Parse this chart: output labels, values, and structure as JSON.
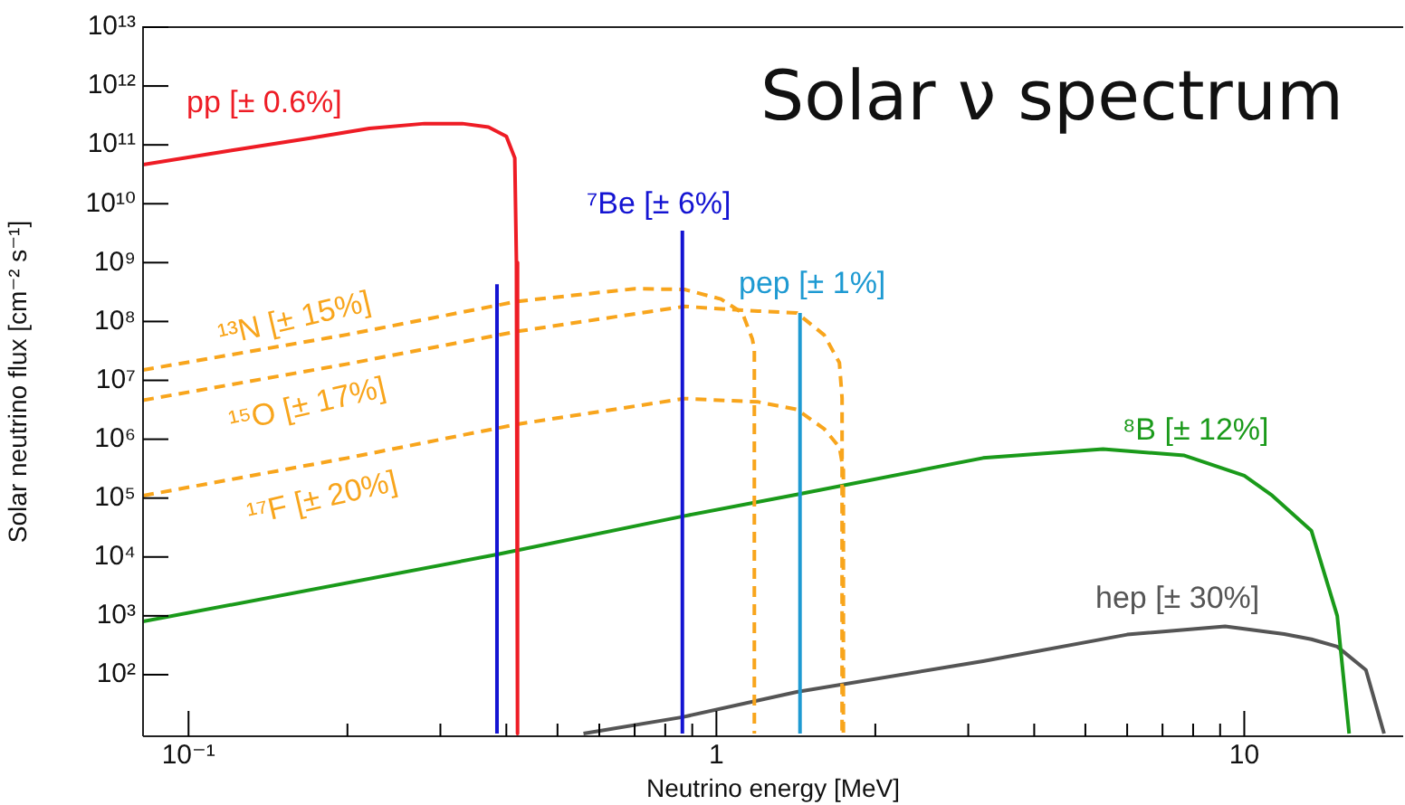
{
  "chart_data": {
    "type": "line",
    "title": "Solar ν spectrum",
    "xlabel": "Neutrino energy [MeV]",
    "ylabel": "Solar neutrino flux [cm⁻² s⁻¹]",
    "log": "xy",
    "grid": false,
    "legend": false,
    "marker": "none",
    "xlim": [
      0.082,
      20
    ],
    "ylim": [
      9,
      10000000000000.0
    ],
    "xticks": [
      {
        "value": 0.1,
        "label": "10⁻¹"
      },
      {
        "value": 0.2,
        "label": null
      },
      {
        "value": 0.3,
        "label": null
      },
      {
        "value": 0.4,
        "label": null
      },
      {
        "value": 0.5,
        "label": null
      },
      {
        "value": 0.6,
        "label": null
      },
      {
        "value": 0.7,
        "label": null
      },
      {
        "value": 0.8,
        "label": null
      },
      {
        "value": 0.9,
        "label": null
      },
      1,
      {
        "value": 2,
        "label": null
      },
      {
        "value": 3,
        "label": null
      },
      {
        "value": 4,
        "label": null
      },
      {
        "value": 5,
        "label": null
      },
      {
        "value": 6,
        "label": null
      },
      {
        "value": 7,
        "label": null
      },
      {
        "value": 8,
        "label": null
      },
      {
        "value": 9,
        "label": null
      },
      10
    ],
    "yticks": [
      {
        "value": 100,
        "label": "10²"
      },
      {
        "value": 1000,
        "label": "10³"
      },
      {
        "value": 10000,
        "label": "10⁴"
      },
      {
        "value": 100000,
        "label": "10⁵"
      },
      {
        "value": 1000000,
        "label": "10⁶"
      },
      {
        "value": 10000000,
        "label": "10⁷"
      },
      {
        "value": 100000000,
        "label": "10⁸"
      },
      {
        "value": 1000000000,
        "label": "10⁹"
      },
      {
        "value": 10000000000,
        "label": "10¹⁰"
      },
      {
        "value": 100000000000,
        "label": "10¹¹"
      },
      {
        "value": 1000000000000,
        "label": "10¹²"
      },
      {
        "value": 10000000000000,
        "label": "10¹³"
      }
    ],
    "series": [
      {
        "name": "pp [± 0.6%]",
        "color": "#ee1c25",
        "line_style": "solid",
        "x": [
          0.082,
          0.12,
          0.17,
          0.22,
          0.28,
          0.33,
          0.37,
          0.4,
          0.415,
          0.418,
          0.42
        ],
        "values": [
          46000000000.0,
          80000000000.0,
          130000000000.0,
          190000000000.0,
          230000000000.0,
          230000000000.0,
          200000000000.0,
          140000000000.0,
          60000000000.0,
          1000000000.0,
          10
        ]
      },
      {
        "name": "⁷Be [± 6%]",
        "color": "#1414d2",
        "line_style": "solid",
        "x": [
          0.384,
          0.384,
          0.6,
          0.862,
          0.862
        ],
        "values": [
          10,
          430000000.0,
          null,
          10,
          3500000000.0
        ]
      },
      {
        "name": "pep [± 1%]",
        "color": "#1e9ad2",
        "line_style": "solid",
        "x": [
          1.44,
          1.44
        ],
        "values": [
          10,
          140000000.0
        ]
      },
      {
        "name": "¹³N [± 15%]",
        "color": "#f8a51c",
        "line_style": "dashed",
        "x": [
          0.082,
          0.2,
          0.42,
          0.7,
          0.87,
          1.02,
          1.12,
          1.17,
          1.18,
          1.18
        ],
        "values": [
          15000000.0,
          60000000.0,
          220000000.0,
          360000000.0,
          350000000.0,
          240000000.0,
          140000000.0,
          50000000.0,
          33000000.0,
          10
        ]
      },
      {
        "name": "¹⁵O [± 17%]",
        "color": "#f8a51c",
        "line_style": "dashed",
        "x": [
          0.082,
          0.2,
          0.42,
          0.87,
          1.2,
          1.42,
          1.6,
          1.71,
          1.73,
          1.73
        ],
        "values": [
          4600000.0,
          19000000.0,
          68000000.0,
          180000000.0,
          150000000.0,
          140000000.0,
          59000000.0,
          20000000.0,
          5000000.0,
          10
        ]
      },
      {
        "name": "¹⁷F [± 20%]",
        "color": "#f8a51c",
        "line_style": "dashed",
        "x": [
          0.082,
          0.2,
          0.42,
          0.87,
          1.2,
          1.42,
          1.6,
          1.71,
          1.74,
          1.74
        ],
        "values": [
          110000.0,
          480000.0,
          1800000.0,
          4900000.0,
          4300000.0,
          3200000.0,
          1500000.0,
          730000.0,
          300000.0,
          10
        ]
      },
      {
        "name": "⁸B [± 12%]",
        "color": "#1a9a1a",
        "line_style": "solid",
        "x": [
          0.082,
          0.384,
          0.862,
          1.42,
          3.2,
          5.4,
          7.7,
          10,
          11.3,
          13.4,
          15,
          15.8
        ],
        "values": [
          800,
          11000.0,
          49000.0,
          115000.0,
          480000.0,
          680000.0,
          530000.0,
          240000.0,
          110000.0,
          28000.0,
          1000,
          10
        ]
      },
      {
        "name": "hep [± 30%]",
        "color": "#555555",
        "line_style": "solid",
        "x": [
          0.56,
          0.862,
          1.42,
          3.2,
          6,
          9.2,
          11.9,
          13.4,
          15,
          17,
          18.4
        ],
        "values": [
          10,
          19,
          51,
          170,
          480,
          660,
          490,
          400,
          300,
          120,
          10
        ]
      }
    ]
  }
}
